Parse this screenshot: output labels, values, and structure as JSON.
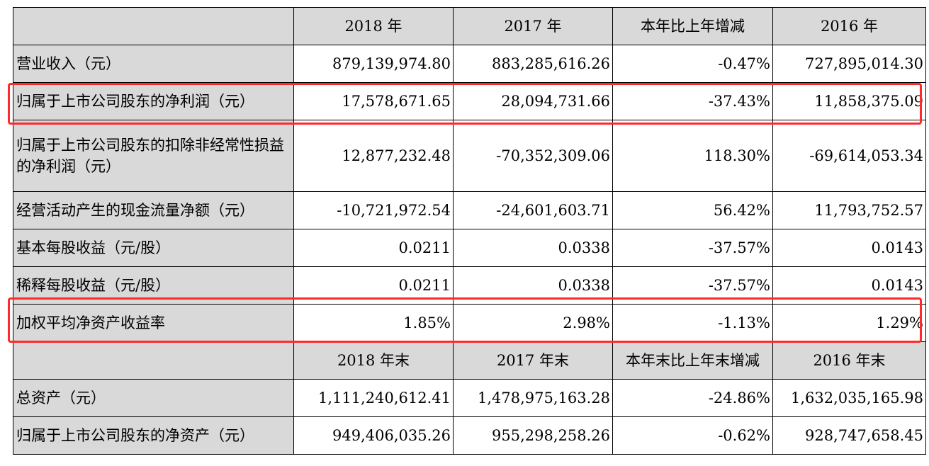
{
  "table": {
    "header_top": [
      "",
      "2018 年",
      "2017 年",
      "本年比上年增减",
      "2016 年"
    ],
    "header_bottom": [
      "",
      "2018 年末",
      "2017 年末",
      "本年末比上年末增减",
      "2016 年末"
    ],
    "rows_top": [
      {
        "label": "营业收入（元）",
        "values": [
          "879,139,974.80",
          "883,285,616.26",
          "-0.47%",
          "727,895,014.30"
        ]
      },
      {
        "label": "归属于上市公司股东的净利润（元）",
        "values": [
          "17,578,671.65",
          "28,094,731.66",
          "-37.43%",
          "11,858,375.09"
        ],
        "highlighted": true
      },
      {
        "label": "归属于上市公司股东的扣除非经常性损益的净利润（元）",
        "values": [
          "12,877,232.48",
          "-70,352,309.06",
          "118.30%",
          "-69,614,053.34"
        ]
      },
      {
        "label": "经营活动产生的现金流量净额（元）",
        "values": [
          "-10,721,972.54",
          "-24,601,603.71",
          "56.42%",
          "11,793,752.57"
        ]
      },
      {
        "label": "基本每股收益（元/股）",
        "values": [
          "0.0211",
          "0.0338",
          "-37.57%",
          "0.0143"
        ]
      },
      {
        "label": "稀释每股收益（元/股）",
        "values": [
          "0.0211",
          "0.0338",
          "-37.57%",
          "0.0143"
        ]
      },
      {
        "label": "加权平均净资产收益率",
        "values": [
          "1.85%",
          "2.98%",
          "-1.13%",
          "1.29%"
        ],
        "highlighted": true
      }
    ],
    "rows_bottom": [
      {
        "label": "总资产（元）",
        "values": [
          "1,111,240,612.41",
          "1,478,975,163.28",
          "-24.86%",
          "1,632,035,165.98"
        ]
      },
      {
        "label": "归属于上市公司股东的净资产（元）",
        "values": [
          "949,406,035.26",
          "955,298,258.26",
          "-0.62%",
          "928,747,658.45"
        ]
      }
    ]
  },
  "highlight_color": "#ff2b2b"
}
